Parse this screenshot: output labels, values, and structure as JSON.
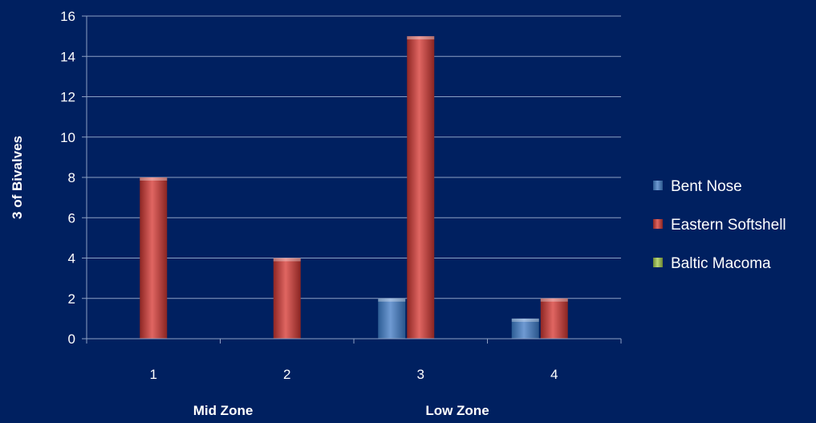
{
  "chart_data": {
    "type": "bar",
    "title": "",
    "ylabel": "3 of Bivalves",
    "xlabel": "",
    "categories": [
      "1",
      "2",
      "3",
      "4"
    ],
    "group_labels": [
      "Mid Zone",
      "Low Zone"
    ],
    "ylim": [
      0,
      16
    ],
    "yticks": [
      0,
      2,
      4,
      6,
      8,
      10,
      12,
      14,
      16
    ],
    "grid": true,
    "legend_position": "right",
    "series": [
      {
        "name": "Bent Nose",
        "values": [
          0,
          0,
          2,
          1
        ],
        "color": "#4f81bd"
      },
      {
        "name": "Eastern Softshell",
        "values": [
          8,
          4,
          15,
          2
        ],
        "color": "#c0504d"
      },
      {
        "name": "Baltic Macoma",
        "values": [
          0,
          0,
          0,
          0
        ],
        "color": "#9bbb59"
      }
    ]
  },
  "colors": {
    "background": "#002060",
    "text": "#ffffff",
    "gridline": "#8ea0c4"
  }
}
